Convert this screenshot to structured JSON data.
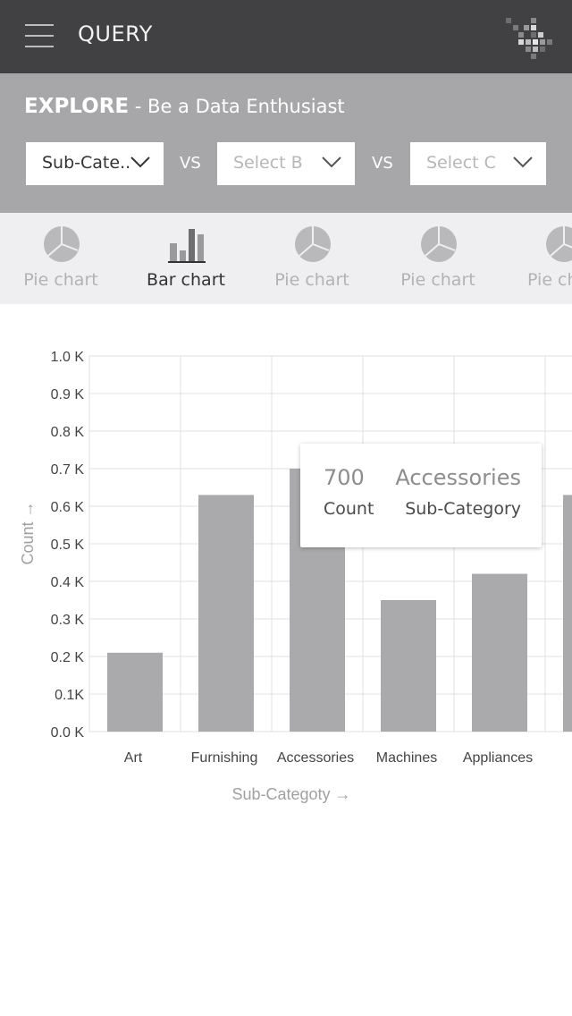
{
  "header": {
    "app_title": "QUERY",
    "menu_icon": "hamburger-menu-icon",
    "logo_icon": "pixel-logo-icon"
  },
  "explore": {
    "title": "EXPLORE",
    "subtitle": " - Be a Data Enthusiast",
    "select_a": {
      "value": "Sub-Cate.."
    },
    "select_b": {
      "placeholder": "Select B"
    },
    "select_c": {
      "placeholder": "Select C"
    },
    "vs_label": "VS"
  },
  "chart_types": [
    {
      "label": "Pie chart",
      "icon": "pie-chart-icon",
      "active": false
    },
    {
      "label": "Bar chart",
      "icon": "bar-chart-icon",
      "active": true
    },
    {
      "label": "Pie chart",
      "icon": "pie-chart-icon",
      "active": false
    },
    {
      "label": "Pie chart",
      "icon": "pie-chart-icon",
      "active": false
    },
    {
      "label": "Pie chart",
      "icon": "pie-chart-icon",
      "active": false
    }
  ],
  "colors": {
    "header_bg": "#414042",
    "explore_bg": "#a7a6a8",
    "tab_bg": "#efeef0",
    "bar": "#aaa9ab",
    "grid": "#e0e0e0"
  },
  "chart_data": {
    "type": "bar",
    "categories": [
      "Art",
      "Furnishing",
      "Accessories",
      "Machines",
      "Appliances",
      ""
    ],
    "values": [
      210,
      630,
      700,
      350,
      420,
      630
    ],
    "xlabel": "Sub-Categoty →",
    "ylabel": "Count →",
    "ylim": [
      0,
      1000
    ],
    "yticks": [
      0,
      100,
      200,
      300,
      400,
      500,
      600,
      700,
      800,
      900,
      1000
    ],
    "ytick_labels": [
      "0.0 K",
      "0.1K",
      "0.2 K",
      "0.3 K",
      "0.4 K",
      "0.5 K",
      "0.6 K",
      "0.7 K",
      "0.8 K",
      "0.9 K",
      "1.0 K"
    ],
    "grid": true,
    "tooltip": {
      "value": "700",
      "value_label": "Count",
      "category": "Accessories",
      "category_label": "Sub-Category"
    }
  }
}
